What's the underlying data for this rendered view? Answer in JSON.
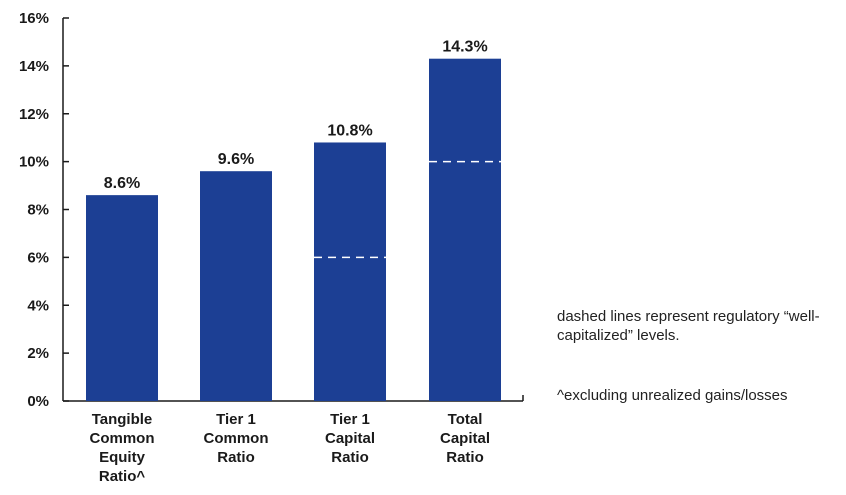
{
  "chart_data": {
    "type": "bar",
    "categories": [
      [
        "Tangible",
        "Common",
        "Equity",
        "Ratio^"
      ],
      [
        "Tier 1",
        "Common",
        "Ratio"
      ],
      [
        "Tier 1",
        "Capital",
        "Ratio"
      ],
      [
        "Total",
        "Capital",
        "Ratio"
      ]
    ],
    "values": [
      8.6,
      9.6,
      10.8,
      14.3
    ],
    "value_labels": [
      "8.6%",
      "9.6%",
      "10.8%",
      "14.3%"
    ],
    "well_capitalized_levels": [
      null,
      null,
      6,
      10
    ],
    "ylim": [
      0,
      16
    ],
    "yticks": [
      0,
      2,
      4,
      6,
      8,
      10,
      12,
      14,
      16
    ],
    "ytick_labels": [
      "0%",
      "2%",
      "4%",
      "6%",
      "8%",
      "10%",
      "12%",
      "14%",
      "16%"
    ],
    "title": "",
    "xlabel": "",
    "ylabel": "",
    "grid": false,
    "colors": {
      "bar": "#1c3f94",
      "dashed_line": "#ffffff",
      "axis": "#1a1a1a"
    }
  },
  "notes": {
    "dashed": "dashed lines represent regulatory “well-capitalized” levels.",
    "excluding": "^excluding unrealized gains/losses"
  }
}
